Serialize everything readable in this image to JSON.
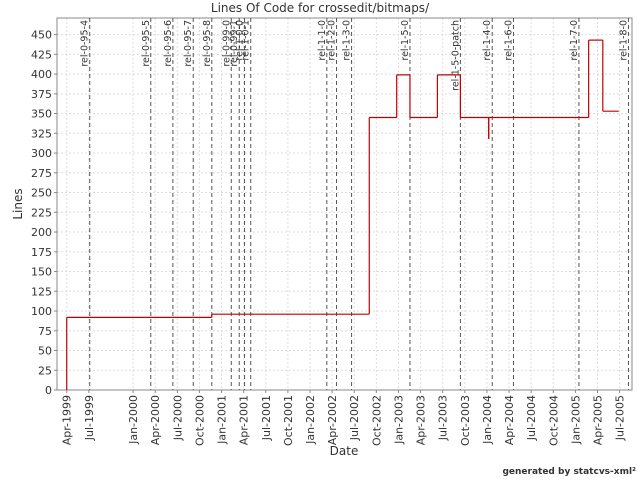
{
  "chart_data": {
    "type": "step",
    "title": "Lines Of Code for crossedit/bitmaps/",
    "x_label": "Date",
    "y_label": "Lines",
    "annotation": "generated by statcvs-xml²",
    "xlim": [
      1999.14,
      2005.64
    ],
    "ylim": [
      0,
      471
    ],
    "yticks": [
      0,
      25,
      50,
      75,
      100,
      125,
      150,
      175,
      200,
      225,
      250,
      275,
      300,
      325,
      350,
      375,
      400,
      425,
      450
    ],
    "xticks": [
      {
        "value": 1999.25,
        "label": "Apr-1999"
      },
      {
        "value": 1999.5,
        "label": "Jul-1999"
      },
      {
        "value": 2000.0,
        "label": "Jan-2000"
      },
      {
        "value": 2000.25,
        "label": "Apr-2000"
      },
      {
        "value": 2000.5,
        "label": "Jul-2000"
      },
      {
        "value": 2000.75,
        "label": "Oct-2000"
      },
      {
        "value": 2001.0,
        "label": "Jan-2001"
      },
      {
        "value": 2001.25,
        "label": "Apr-2001"
      },
      {
        "value": 2001.5,
        "label": "Jul-2001"
      },
      {
        "value": 2001.75,
        "label": "Oct-2001"
      },
      {
        "value": 2002.0,
        "label": "Jan-2002"
      },
      {
        "value": 2002.25,
        "label": "Apr-2002"
      },
      {
        "value": 2002.5,
        "label": "Jul-2002"
      },
      {
        "value": 2002.75,
        "label": "Oct-2002"
      },
      {
        "value": 2003.0,
        "label": "Jan-2003"
      },
      {
        "value": 2003.25,
        "label": "Apr-2003"
      },
      {
        "value": 2003.5,
        "label": "Jul-2003"
      },
      {
        "value": 2003.75,
        "label": "Oct-2003"
      },
      {
        "value": 2004.0,
        "label": "Jan-2004"
      },
      {
        "value": 2004.25,
        "label": "Apr-2004"
      },
      {
        "value": 2004.5,
        "label": "Jul-2004"
      },
      {
        "value": 2004.75,
        "label": "Oct-2004"
      },
      {
        "value": 2005.0,
        "label": "Jan-2005"
      },
      {
        "value": 2005.25,
        "label": "Apr-2005"
      },
      {
        "value": 2005.5,
        "label": "Jul-2005"
      }
    ],
    "grid": true,
    "series": [
      {
        "color": "#c00000",
        "x": [
          1999.25,
          1999.25,
          2000.89,
          2002.67,
          2002.98,
          2003.13,
          2003.44,
          2003.7,
          2004.02,
          2004.02,
          2005.15,
          2005.31,
          2005.49
        ],
        "values": [
          0,
          92,
          96,
          345,
          399,
          345,
          399,
          345,
          318,
          345,
          443,
          353,
          353
        ]
      }
    ],
    "releases": [
      {
        "label": "rel-0-95-4",
        "x": 1999.51
      },
      {
        "label": "rel-0-95-5",
        "x": 2000.2
      },
      {
        "label": "rel-0-95-6",
        "x": 2000.45
      },
      {
        "label": "rel-0-95-7",
        "x": 2000.68
      },
      {
        "label": "rel-0-95-8",
        "x": 2000.89
      },
      {
        "label": "rel-0-99-0",
        "x": 2001.11
      },
      {
        "label": "rel-0-99-1",
        "x": 2001.2
      },
      {
        "label": "rel-1-0-0",
        "x": 2001.26
      },
      {
        "label": "rel-1-0-1",
        "x": 2001.33
      },
      {
        "label": "rel-1-1-0",
        "x": 2002.19
      },
      {
        "label": "rel-1-2-0",
        "x": 2002.3
      },
      {
        "label": "rel-1-3-0",
        "x": 2002.47
      },
      {
        "label": "rel-1-5-0",
        "x": 2003.13
      },
      {
        "label": "rel-1-5-0-patch",
        "x": 2003.7
      },
      {
        "label": "rel-1-4-0",
        "x": 2004.06
      },
      {
        "label": "rel-1-6-0",
        "x": 2004.3
      },
      {
        "label": "rel-1-7-0",
        "x": 2005.04
      },
      {
        "label": "rel-1-8-0",
        "x": 2005.6
      }
    ]
  }
}
